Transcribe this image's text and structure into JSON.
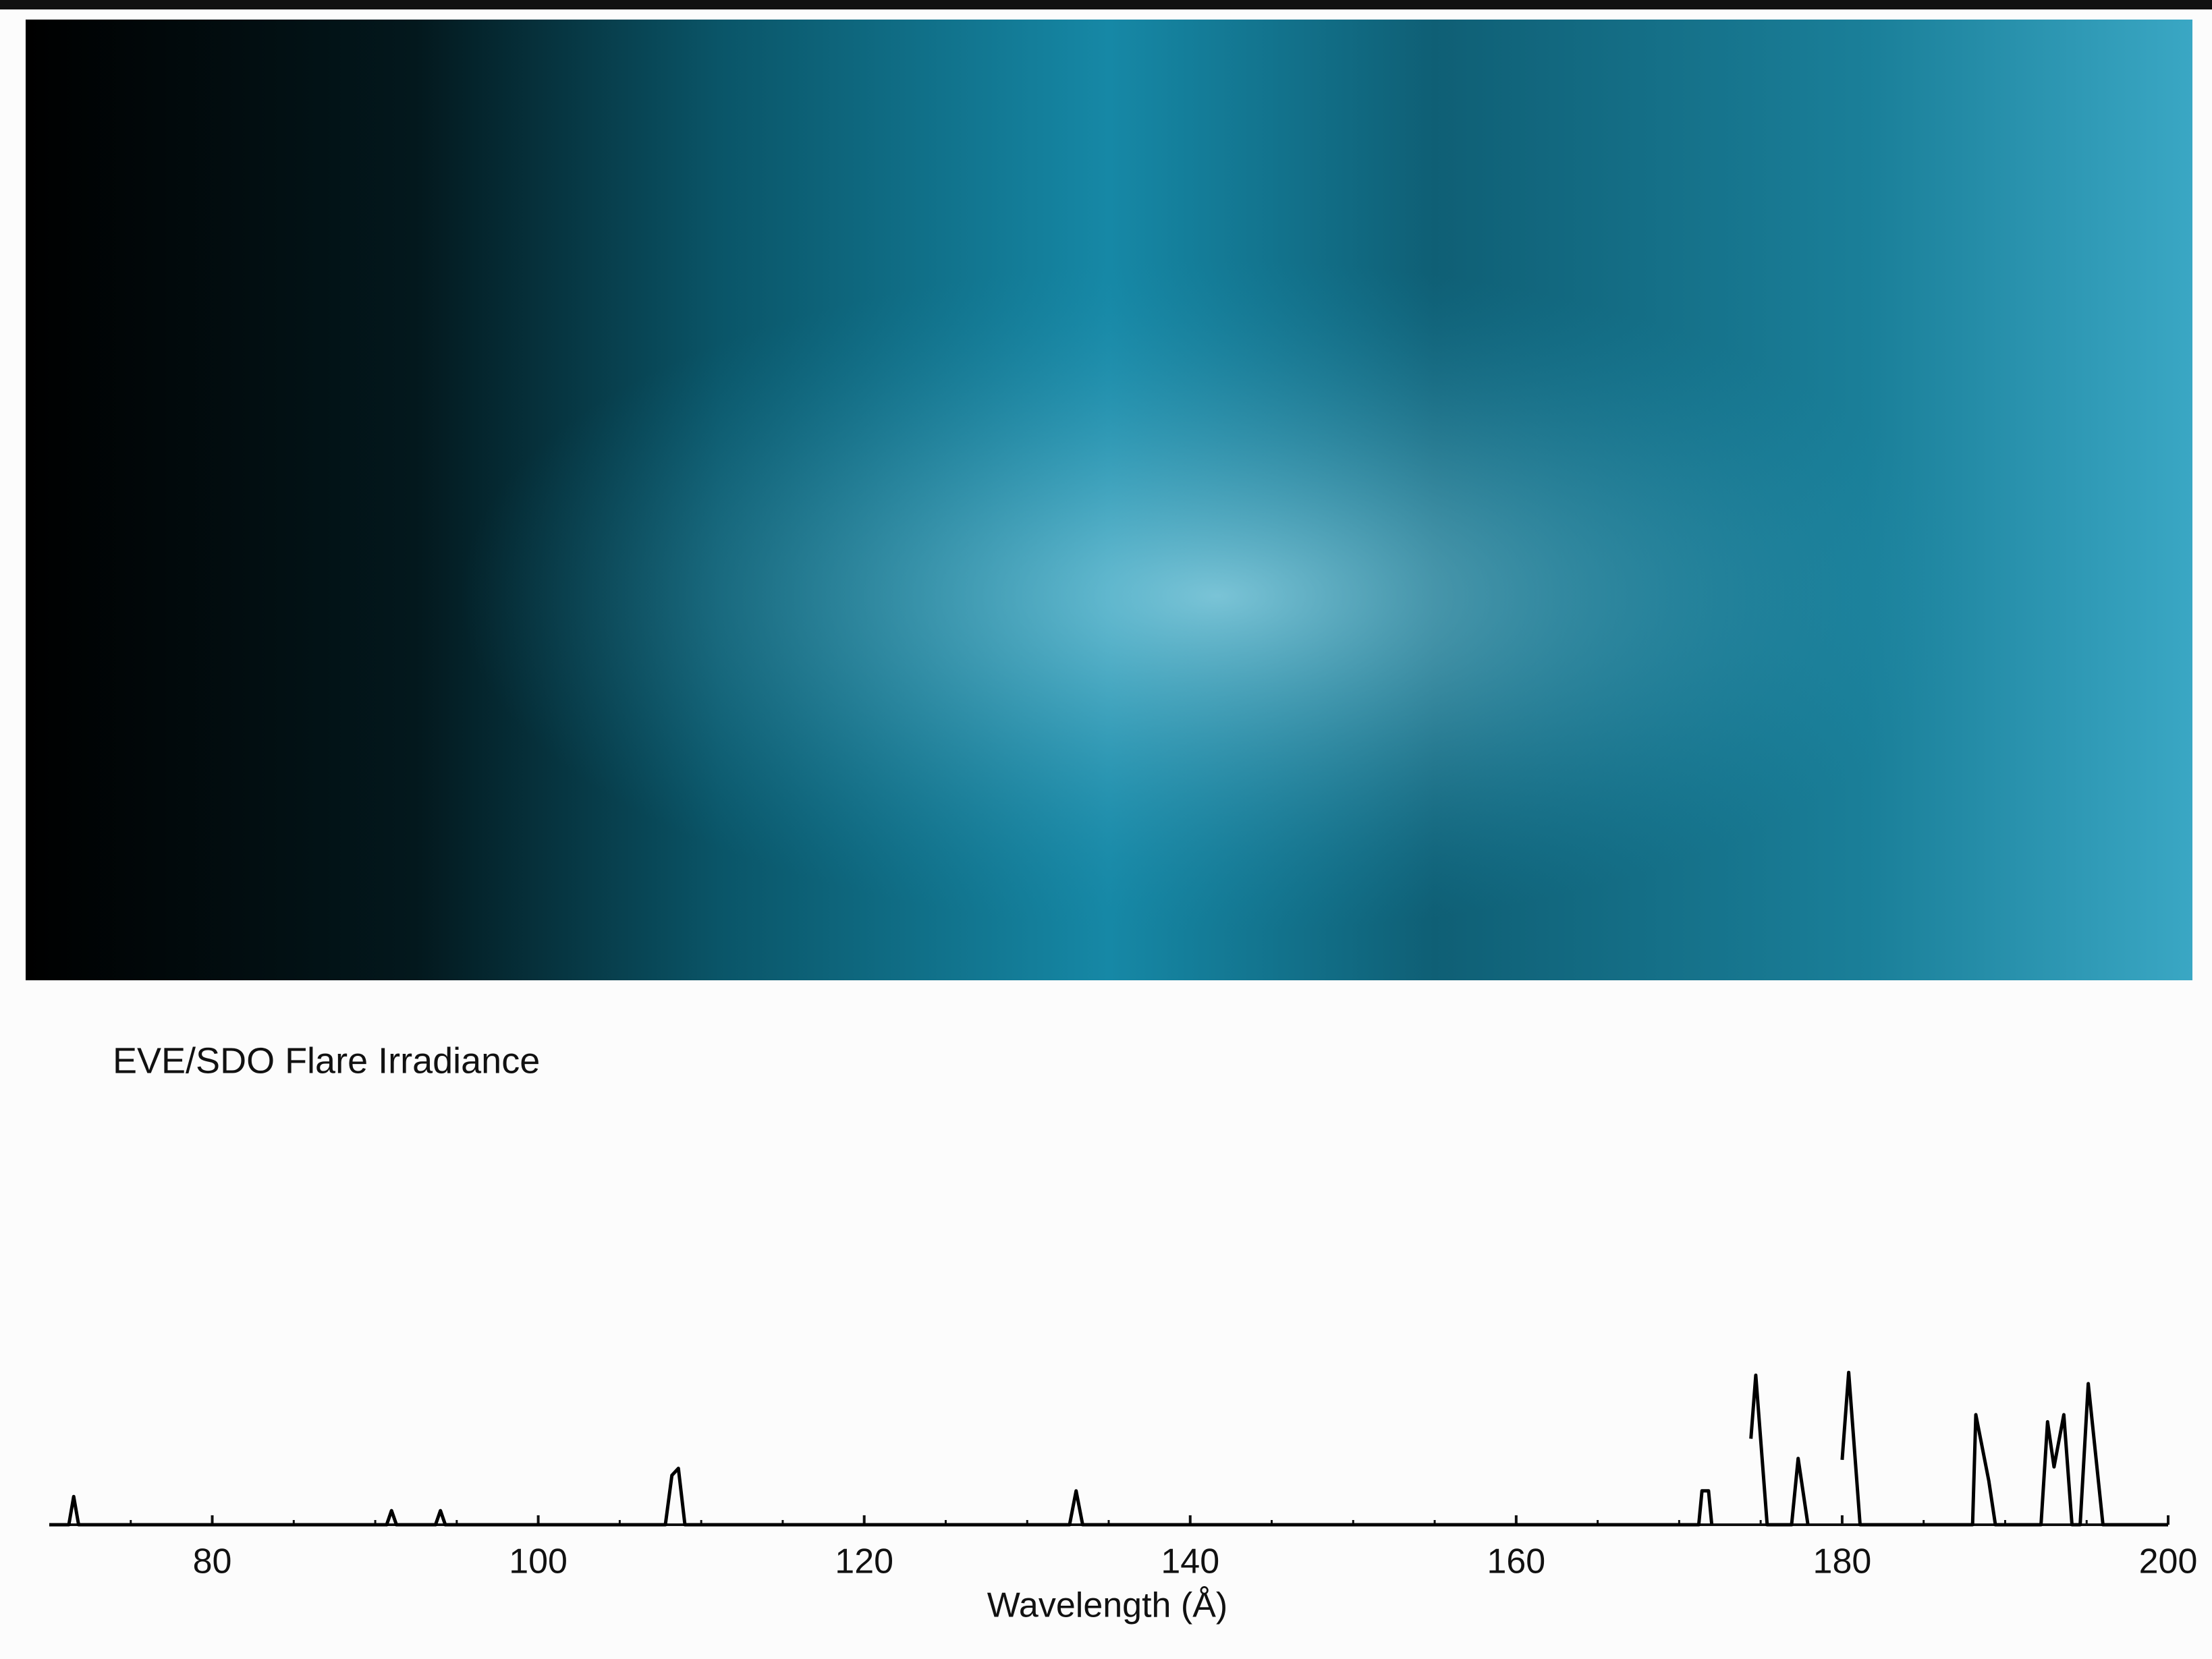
{
  "chart_data": {
    "type": "line",
    "title": "EVE/SDO Flare Irradiance",
    "xlabel": "Wavelength (Å)",
    "x": [
      70,
      71.2,
      71.5,
      71.8,
      90.7,
      91,
      91.3,
      93.7,
      94,
      94.3,
      107.8,
      108.2,
      108.6,
      109,
      132.6,
      133,
      133.4,
      171.2,
      171.4,
      171.8,
      172,
      173,
      174.4,
      174.7,
      175.4,
      176.9,
      177.3,
      177.9,
      179,
      180,
      180.4,
      181.1,
      188,
      188.2,
      189,
      189.4,
      192.2,
      192.6,
      193,
      193.6,
      194.1,
      194.6,
      195.1,
      196,
      200
    ],
    "values": [
      0,
      0,
      20,
      0,
      0,
      10,
      0,
      0,
      10,
      0,
      0,
      35,
      40,
      0,
      0,
      24,
      0,
      0,
      24,
      24,
      0,
      null,
      61,
      106,
      0,
      0,
      47,
      0,
      null,
      46,
      108,
      0,
      0,
      78,
      31,
      0,
      0,
      73,
      41,
      78,
      0,
      0,
      100,
      0,
      0
    ],
    "color": "#000000",
    "xlim": [
      70,
      200
    ],
    "xticks": [
      80,
      100,
      120,
      140,
      160,
      180,
      200
    ],
    "xminorticks": [
      75,
      85,
      90,
      95,
      105,
      110,
      115,
      125,
      130,
      135,
      145,
      150,
      155,
      165,
      170,
      175,
      185,
      190,
      195
    ],
    "ylim": [
      0,
      110
    ]
  }
}
